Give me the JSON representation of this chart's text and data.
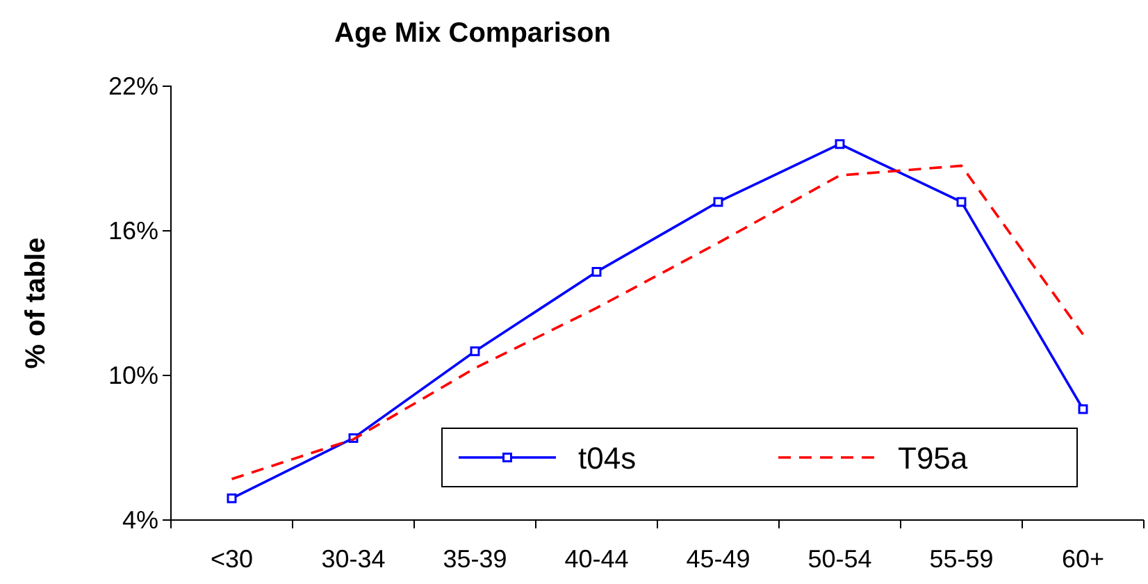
{
  "chart_data": {
    "type": "line",
    "title": "Age Mix Comparison",
    "ylabel": "% of table",
    "categories": [
      "<30",
      "30-34",
      "35-39",
      "40-44",
      "45-49",
      "50-54",
      "55-59",
      "60+"
    ],
    "series": [
      {
        "name": "t04s",
        "color": "#0000ff",
        "marker": "square",
        "line_style": "solid",
        "values": [
          4.9,
          7.4,
          11.0,
          14.3,
          17.2,
          19.6,
          17.2,
          8.6
        ]
      },
      {
        "name": "T95a",
        "color": "#ff0000",
        "marker": "none",
        "line_style": "dashed",
        "values": [
          5.7,
          7.35,
          10.3,
          12.8,
          15.5,
          18.3,
          18.7,
          11.7
        ]
      }
    ],
    "ylim": [
      4,
      22
    ],
    "yticks": [
      {
        "value": 4,
        "label": "4%"
      },
      {
        "value": 10,
        "label": "10%"
      },
      {
        "value": 16,
        "label": "16%"
      },
      {
        "value": 22,
        "label": "22%"
      }
    ],
    "legend": "bottom right"
  }
}
